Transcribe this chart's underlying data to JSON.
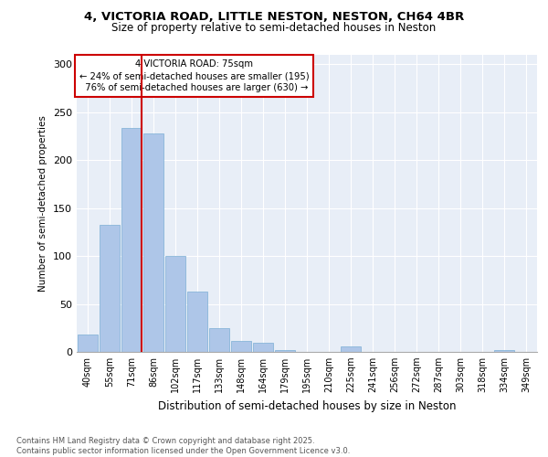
{
  "title_line1": "4, VICTORIA ROAD, LITTLE NESTON, NESTON, CH64 4BR",
  "title_line2": "Size of property relative to semi-detached houses in Neston",
  "xlabel": "Distribution of semi-detached houses by size in Neston",
  "ylabel": "Number of semi-detached properties",
  "categories": [
    "40sqm",
    "55sqm",
    "71sqm",
    "86sqm",
    "102sqm",
    "117sqm",
    "133sqm",
    "148sqm",
    "164sqm",
    "179sqm",
    "195sqm",
    "210sqm",
    "225sqm",
    "241sqm",
    "256sqm",
    "272sqm",
    "287sqm",
    "303sqm",
    "318sqm",
    "334sqm",
    "349sqm"
  ],
  "values": [
    18,
    133,
    234,
    228,
    100,
    63,
    25,
    11,
    10,
    2,
    0,
    0,
    6,
    0,
    0,
    0,
    0,
    0,
    0,
    2,
    0
  ],
  "bar_color": "#aec6e8",
  "bar_edge_color": "#7bafd4",
  "pct_smaller": 24,
  "pct_larger": 76,
  "count_smaller": 195,
  "count_larger": 630,
  "vline_bin": 2,
  "annotation_box_color": "#cc0000",
  "ylim": [
    0,
    310
  ],
  "yticks": [
    0,
    50,
    100,
    150,
    200,
    250,
    300
  ],
  "background_color": "#e8eef7",
  "footnote": "Contains HM Land Registry data © Crown copyright and database right 2025.\nContains public sector information licensed under the Open Government Licence v3.0."
}
